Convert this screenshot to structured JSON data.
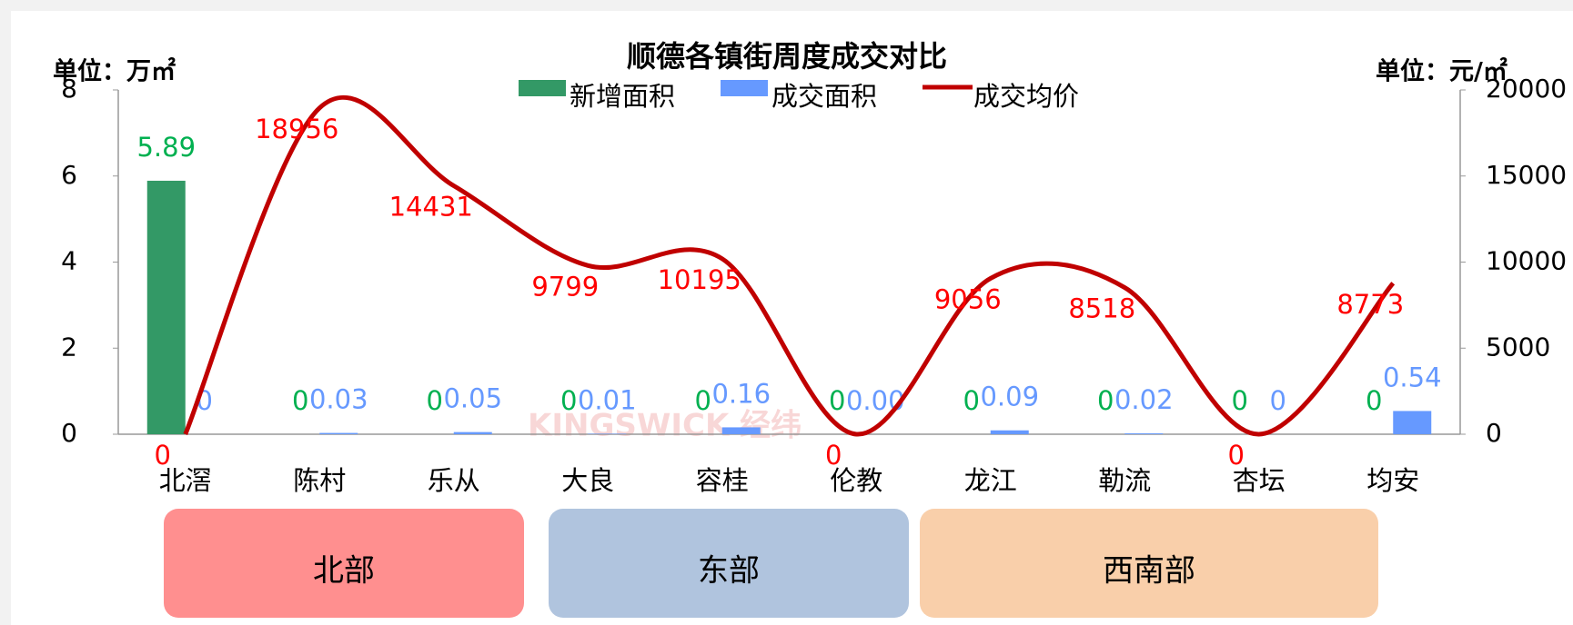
{
  "chart_data": {
    "type": "bar-line",
    "title": "顺德各镇街周度成交对比",
    "ylabel": "单位：万㎡",
    "y2label": "单位：元/㎡",
    "watermark": "KINGSWICK 经纬",
    "categories": [
      "北滘",
      "陈村",
      "乐从",
      "大良",
      "容桂",
      "伦教",
      "龙江",
      "勒流",
      "杏坛",
      "均安"
    ],
    "groups": [
      "北部",
      "东部",
      "西南部"
    ],
    "series": [
      {
        "name": "新增面积",
        "type": "bar",
        "color": "#339966",
        "label_color": "#00b050",
        "values": [
          5.89,
          0,
          0,
          0,
          0,
          0,
          0,
          0,
          0,
          0
        ]
      },
      {
        "name": "成交面积",
        "type": "bar",
        "color": "#6699ff",
        "label_color": "#6699ff",
        "values": [
          0,
          0.03,
          0.05,
          0.01,
          0.16,
          0,
          0.09,
          0.02,
          0,
          0.54
        ],
        "value_labels": [
          "0",
          "0.03",
          "0.05",
          "0.01",
          "0.16",
          "0.00",
          "0.09",
          "0.02",
          "0",
          "0.54"
        ]
      },
      {
        "name": "成交均价",
        "type": "line",
        "axis": "y2",
        "color": "#c00000",
        "label_color": "#ff0000",
        "values": [
          0,
          18956,
          14431,
          9799,
          10195,
          0,
          9056,
          8518,
          0,
          8773
        ]
      }
    ],
    "ylim": [
      0,
      8
    ],
    "yticks": [
      0,
      2,
      4,
      6,
      8
    ],
    "y2lim": [
      0,
      20000
    ],
    "y2ticks": [
      0,
      5000,
      10000,
      15000,
      20000
    ]
  }
}
